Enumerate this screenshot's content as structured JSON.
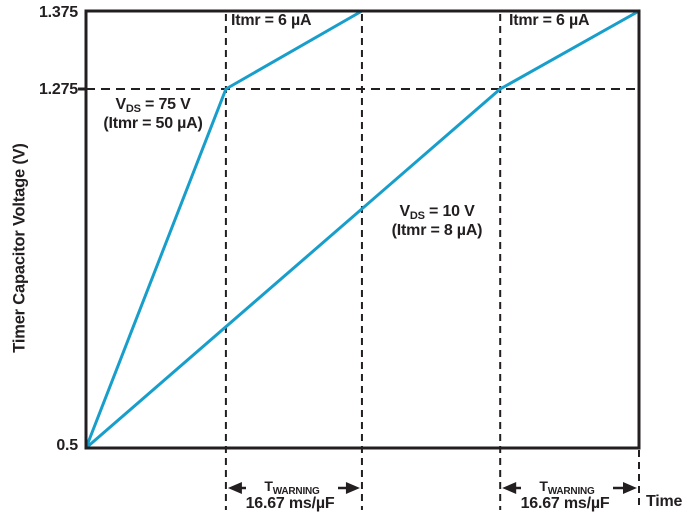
{
  "colors": {
    "line_blue": "#189ECB",
    "ink": "#231F20",
    "background": "#FFFFFF"
  },
  "chart_data": {
    "type": "line",
    "title": "",
    "xlabel": "Time",
    "ylabel": "Timer Capacitor Voltage (V)",
    "x_units": "normalized schematic time (no numeric x scale shown)",
    "ylim": [
      0.5,
      1.375
    ],
    "y_tick_labels": [
      "0.5",
      "1.275",
      "1.375"
    ],
    "y_ticks": [
      0.5,
      1.275,
      1.375
    ],
    "warning_threshold_v": 1.275,
    "fault_threshold_v": 1.375,
    "grid": "dashed guide at V=1.275 and dashed verticals at warning interval boundaries",
    "legend_position": "none (inline annotations)",
    "series": [
      {
        "name": "VDS = 75 V (Itmr = 50 µA)",
        "itmr_after_warning": "Itmr = 6 µA",
        "points": [
          [
            0,
            0.5
          ],
          [
            0.253,
            1.275
          ],
          [
            0.499,
            1.375
          ]
        ]
      },
      {
        "name": "VDS = 10 V (Itmr = 8 µA)",
        "itmr_after_warning": "Itmr = 6 µA",
        "points": [
          [
            0,
            0.5
          ],
          [
            0.749,
            1.275
          ],
          [
            1.0,
            1.375
          ]
        ]
      }
    ],
    "warning_intervals": [
      {
        "label": "TWARNING",
        "rate": "16.67 ms/µF",
        "t_start": 0.253,
        "t_end": 0.499
      },
      {
        "label": "TWARNING",
        "rate": "16.67 ms/µF",
        "t_start": 0.749,
        "t_end": 1.0
      }
    ]
  },
  "labels": {
    "y_axis_title": "Timer Capacitor Voltage (V)",
    "x_axis_title": "Time",
    "ytick_top": "1.375",
    "ytick_warn": "1.275",
    "ytick_bottom": "0.5",
    "itmr6_left": "Itmr = 6 µA",
    "itmr6_right": "Itmr = 6 µA",
    "series1_line1_pre": "V",
    "series1_line1_sub": "DS",
    "series1_line1_post": " = 75 V",
    "series1_line2": "(Itmr = 50 µA)",
    "series2_line1_pre": "V",
    "series2_line1_sub": "DS",
    "series2_line1_post": " = 10 V",
    "series2_line2": "(Itmr = 8 µA)",
    "twarning_pre": "T",
    "twarning_sub": "WARNING",
    "rate_left": "16.67 ms/µF",
    "rate_right": "16.67 ms/µF"
  }
}
